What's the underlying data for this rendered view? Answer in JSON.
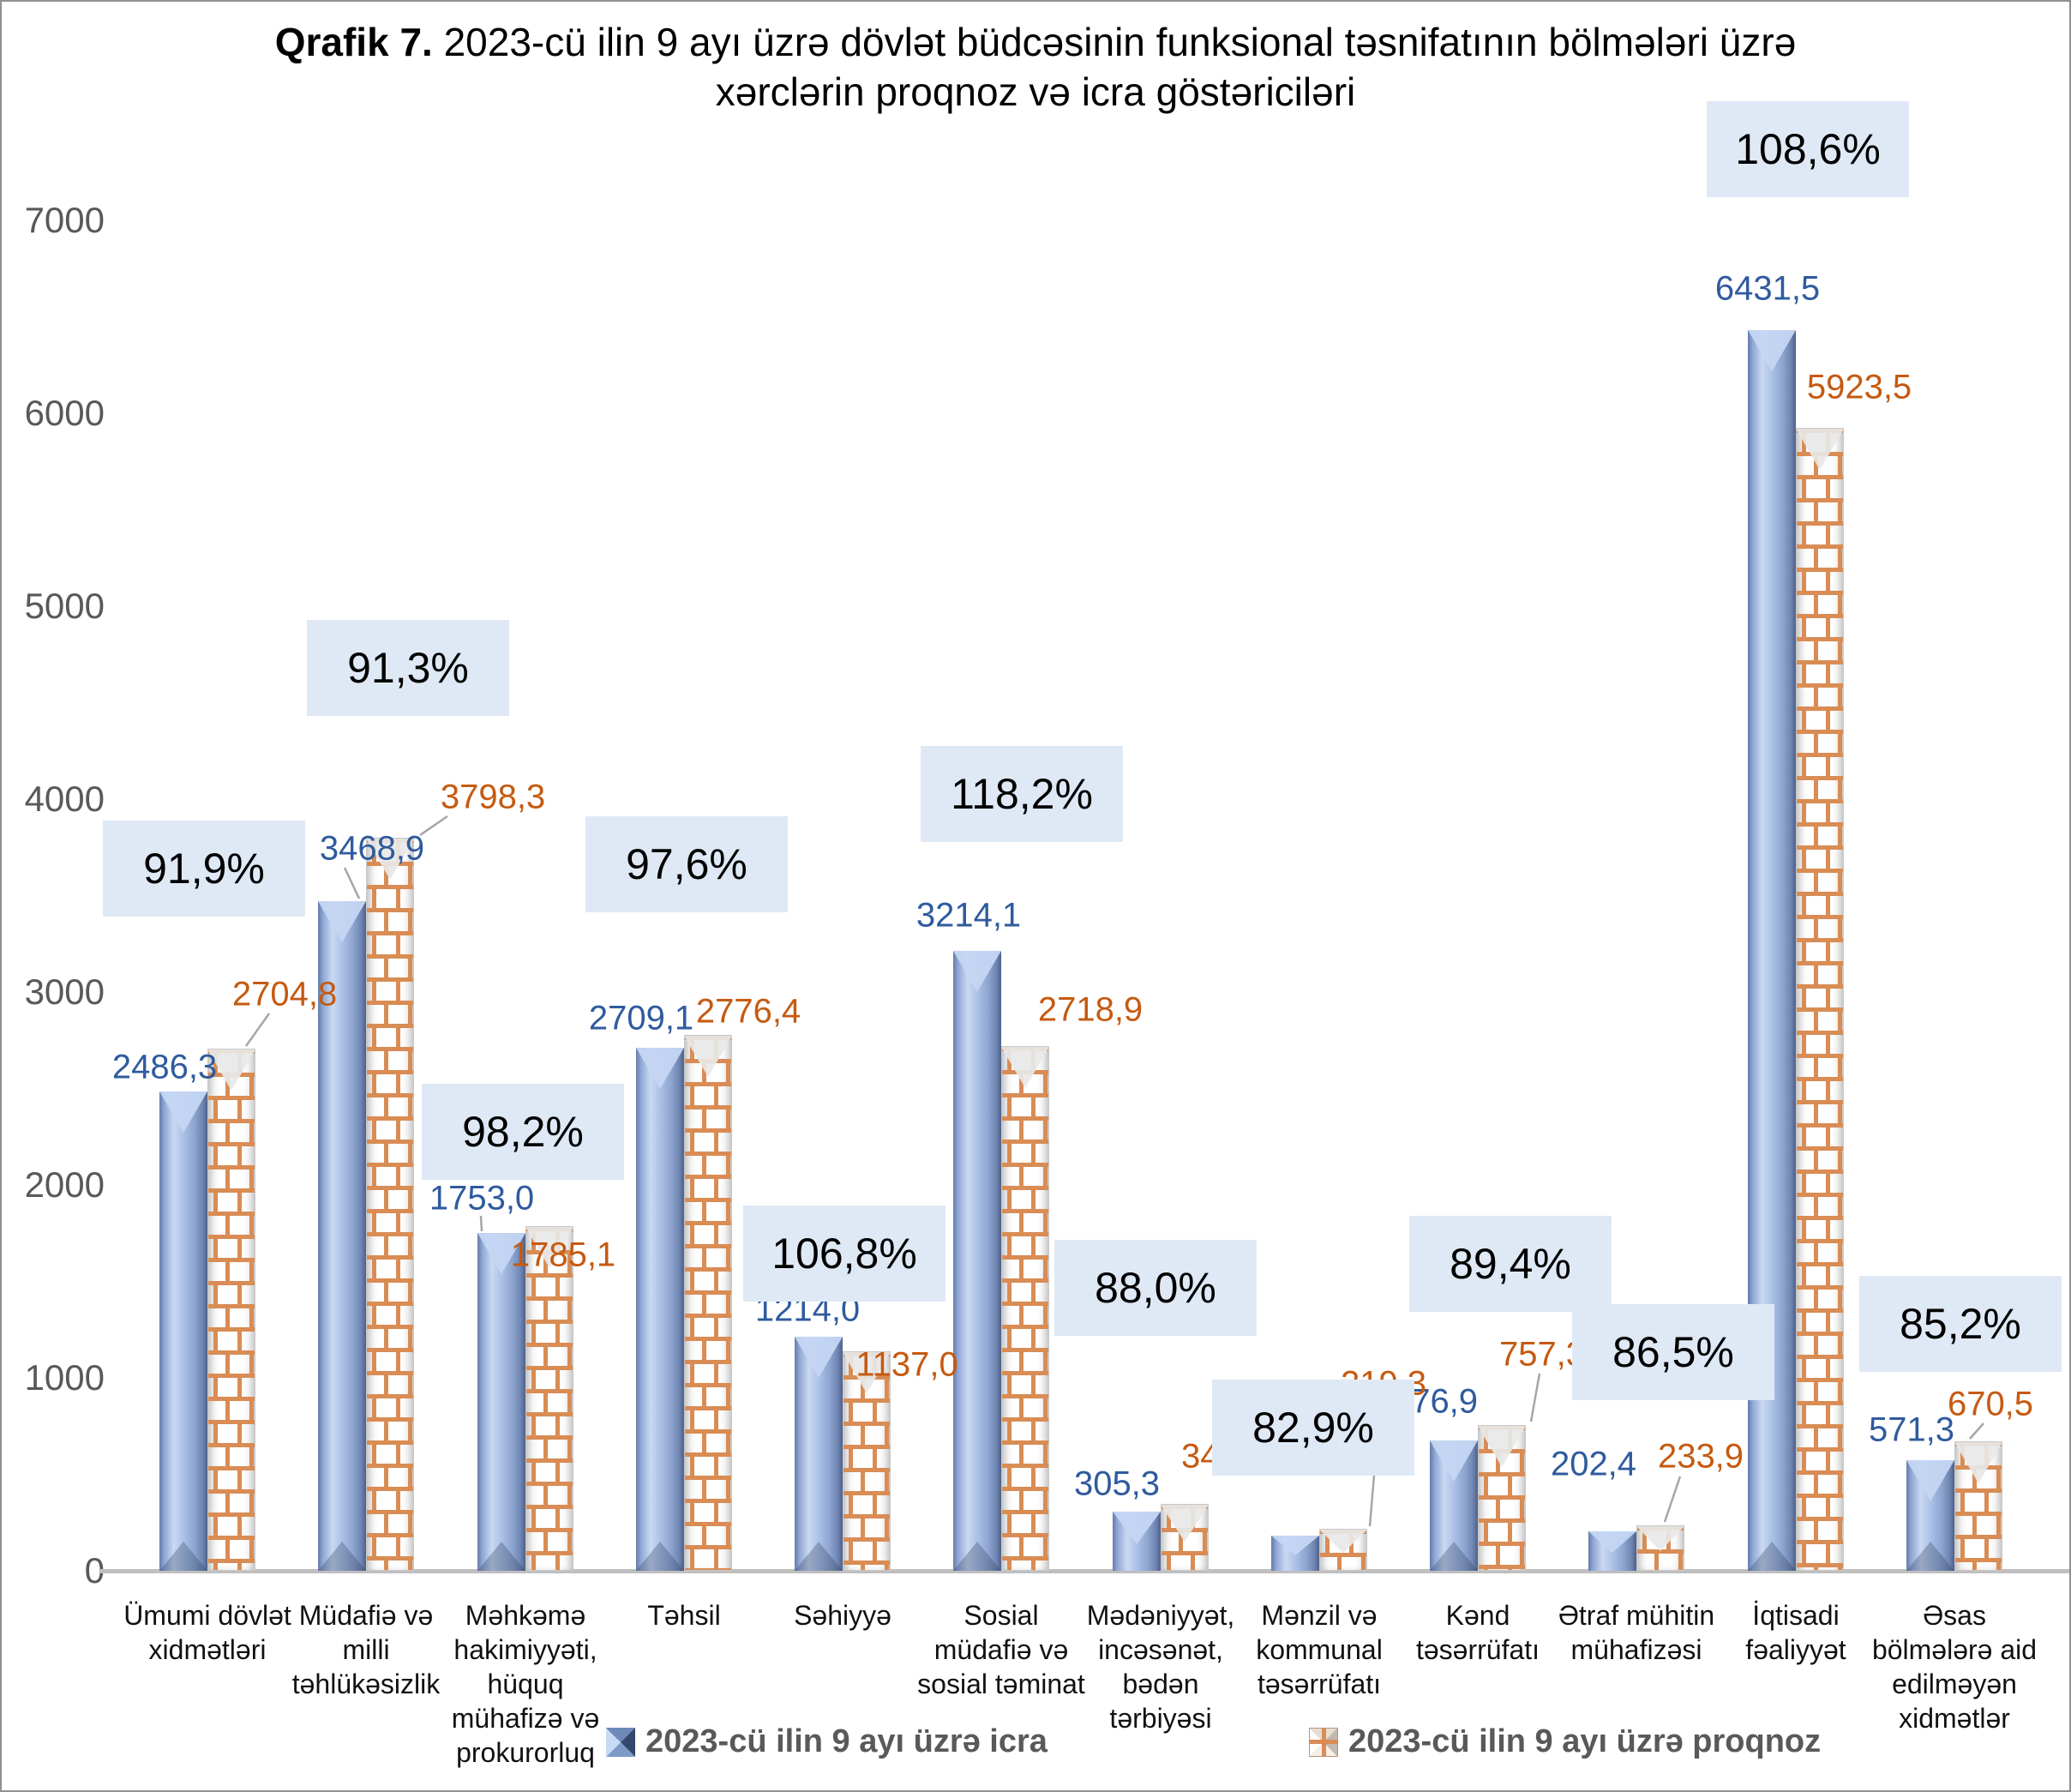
{
  "title": {
    "prefix": "Qrafik 7.",
    "text": "2023-cü ilin 9 ayı üzrə dövlət büdcəsinin funksional təsnifatının bölmələri üzrə xərclərin proqnoz və icra göstəriciləri"
  },
  "y_axis": {
    "ticks": [
      "0",
      "1000",
      "2000",
      "3000",
      "4000",
      "5000",
      "6000",
      "7000"
    ],
    "max": 7000
  },
  "legend": [
    {
      "key": "icra",
      "label": "2023-cü ilin 9 ayı üzrə icra"
    },
    {
      "key": "proqnoz",
      "label": "2023-cü ilin 9 ayı üzrə proqnoz"
    }
  ],
  "chart_data": {
    "type": "bar",
    "title": "Qrafik 7. 2023-cü ilin 9 ayı üzrə dövlət büdcəsinin funksional təsnifatının bölmələri üzrə xərclərin proqnoz və icra göstəriciləri",
    "xlabel": "",
    "ylabel": "",
    "ylim": [
      0,
      7000
    ],
    "grid": false,
    "legend_position": "bottom",
    "categories": [
      "Ümumi dövlət xidmətləri",
      "Müdafiə və milli təhlükəsizlik",
      "Məhkəmə hakimiyyəti, hüquq mühafizə və prokurorluq",
      "Təhsil",
      "Səhiyyə",
      "Sosial müdafiə və sosial təminat",
      "Mədəniyyət, incəsənət, bədən tərbiyəsi",
      "Mənzil və kommunal təsərrüfatı",
      "Kənd təsərrüfatı",
      "Ətraf mühitin mühafizəsi",
      "İqtisadi fəaliyyət",
      "Əsas bölmələrə aid edilməyən xidmətlər"
    ],
    "series": [
      {
        "name": "2023-cü ilin 9 ayı üzrə icra",
        "key": "icra",
        "values": [
          2486.3,
          3468.9,
          1753.0,
          2709.1,
          1214.0,
          3214.1,
          305.3,
          181.7,
          676.9,
          202.4,
          6431.5,
          571.3
        ]
      },
      {
        "name": "2023-cü ilin 9 ayı üzrə proqnoz",
        "key": "proqnoz",
        "values": [
          2704.8,
          3798.3,
          1785.1,
          2776.4,
          1137.0,
          2718.9,
          347.0,
          219.3,
          757.3,
          233.9,
          5923.5,
          670.5
        ]
      }
    ],
    "value_labels": {
      "icra": [
        "2486,3",
        "3468,9",
        "1753,0",
        "2709,1",
        "1214,0",
        "3214,1",
        "305,3",
        "181,7",
        "676,9",
        "202,4",
        "6431,5",
        "571,3"
      ],
      "proqnoz": [
        "2704,8",
        "3798,3",
        "1785,1",
        "2776,4",
        "1137,0",
        "2718,9",
        "347,0",
        "219,3",
        "757,3",
        "233,9",
        "5923,5",
        "670,5"
      ]
    },
    "percent_labels": [
      "91,9%",
      "91,3%",
      "98,2%",
      "97,6%",
      "106,8%",
      "118,2%",
      "88,0%",
      "82,9%",
      "89,4%",
      "86,5%",
      "108,6%",
      "85,2%"
    ]
  },
  "colors": {
    "bar_icra": "#8FA7D4",
    "bar_proqnoz_line": "#D98C54",
    "label_icra": "#2F5B9E",
    "label_proqnoz": "#C55A11",
    "percent_box_fill": "#DFE9F5",
    "axis_text": "#595959",
    "axis_line": "#BFBFBF",
    "legend_text": "#595959"
  }
}
